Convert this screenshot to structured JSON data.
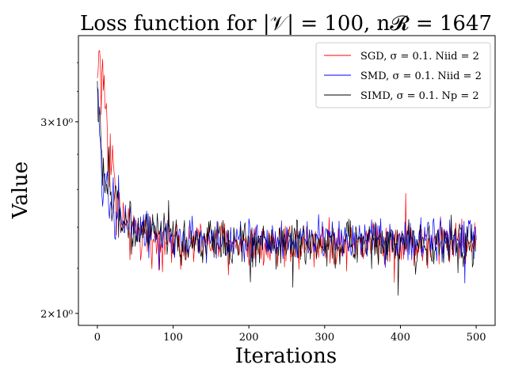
{
  "chart_data": {
    "type": "line",
    "title": "Loss function for |𝒱| = 100, n𝓡 = 1647",
    "xlabel": "Iterations",
    "ylabel": "Value",
    "y_scale": "log",
    "xlim": [
      -25,
      525
    ],
    "ylim": [
      1.95,
      3.6
    ],
    "x_ticks": [
      0,
      100,
      200,
      300,
      400,
      500
    ],
    "x_tick_labels": [
      "0",
      "100",
      "200",
      "300",
      "400",
      "500"
    ],
    "y_ticks": [
      2,
      3
    ],
    "y_tick_labels": [
      "2×10⁰",
      "3×10⁰"
    ],
    "grid": false,
    "legend_position": "top-right",
    "iterations": 500,
    "series": [
      {
        "name": "SGD, σ = 0.1. Niid =    2",
        "color": "#ff0000",
        "anchors": [
          [
            0,
            3.25
          ],
          [
            2,
            3.5
          ],
          [
            3,
            3.55
          ],
          [
            5,
            3.2
          ],
          [
            8,
            3.3
          ],
          [
            12,
            3.05
          ],
          [
            15,
            2.85
          ],
          [
            20,
            2.75
          ],
          [
            25,
            2.55
          ],
          [
            30,
            2.45
          ],
          [
            40,
            2.38
          ],
          [
            60,
            2.35
          ],
          [
            100,
            2.33
          ],
          [
            200,
            2.32
          ],
          [
            300,
            2.33
          ],
          [
            400,
            2.32
          ],
          [
            500,
            2.33
          ]
        ],
        "noise_end": 0.055
      },
      {
        "name": "SMD, σ = 0.1. Niid =    2",
        "color": "#0000ff",
        "anchors": [
          [
            0,
            3.2
          ],
          [
            2,
            2.95
          ],
          [
            5,
            2.75
          ],
          [
            10,
            2.65
          ],
          [
            15,
            2.6
          ],
          [
            20,
            2.55
          ],
          [
            30,
            2.48
          ],
          [
            40,
            2.42
          ],
          [
            60,
            2.38
          ],
          [
            100,
            2.34
          ],
          [
            200,
            2.33
          ],
          [
            300,
            2.34
          ],
          [
            400,
            2.33
          ],
          [
            500,
            2.34
          ]
        ],
        "noise_end": 0.05
      },
      {
        "name": "SIMD, σ = 0.1. Np =    2",
        "color": "#000000",
        "anchors": [
          [
            0,
            3.25
          ],
          [
            2,
            3.05
          ],
          [
            5,
            2.8
          ],
          [
            10,
            2.65
          ],
          [
            15,
            2.6
          ],
          [
            20,
            2.53
          ],
          [
            30,
            2.47
          ],
          [
            40,
            2.42
          ],
          [
            60,
            2.37
          ],
          [
            100,
            2.33
          ],
          [
            200,
            2.32
          ],
          [
            300,
            2.32
          ],
          [
            400,
            2.32
          ],
          [
            500,
            2.32
          ]
        ],
        "noise_end": 0.055
      }
    ]
  }
}
